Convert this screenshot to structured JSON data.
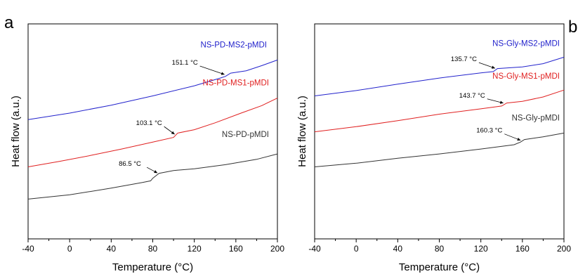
{
  "chart_data": [
    {
      "type": "line",
      "panel_label": "a",
      "xlabel": "Temperature (°C)",
      "ylabel": "Heat flow (a.u.)",
      "xlim": [
        -40,
        200
      ],
      "ylim": [
        0,
        1
      ],
      "x_ticks": [
        "-40",
        "0",
        "40",
        "80",
        "120",
        "160",
        "200"
      ],
      "grid": false,
      "series": [
        {
          "name": "NS-PD-MS2-pMDI",
          "color": "#2222cc",
          "points": [
            [
              -40,
              0.555
            ],
            [
              0,
              0.585
            ],
            [
              40,
              0.622
            ],
            [
              80,
              0.665
            ],
            [
              120,
              0.712
            ],
            [
              145,
              0.748
            ],
            [
              150,
              0.756
            ],
            [
              155,
              0.771
            ],
            [
              170,
              0.782
            ],
            [
              185,
              0.806
            ],
            [
              200,
              0.832
            ]
          ],
          "annotation": {
            "text": "151.1 °C",
            "x": 151.1,
            "y": 0.758
          }
        },
        {
          "name": "NS-PD-MS1-pMDI",
          "color": "#e02020",
          "points": [
            [
              -40,
              0.335
            ],
            [
              -10,
              0.36
            ],
            [
              20,
              0.388
            ],
            [
              50,
              0.418
            ],
            [
              80,
              0.45
            ],
            [
              100,
              0.472
            ],
            [
              104,
              0.492
            ],
            [
              120,
              0.508
            ],
            [
              140,
              0.54
            ],
            [
              165,
              0.585
            ],
            [
              185,
              0.62
            ],
            [
              200,
              0.655
            ]
          ],
          "annotation": {
            "text": "103.1 °C",
            "x": 103.1,
            "y": 0.48
          }
        },
        {
          "name": "NS-PD-pMDI",
          "color": "#333333",
          "points": [
            [
              -40,
              0.185
            ],
            [
              0,
              0.205
            ],
            [
              40,
              0.236
            ],
            [
              70,
              0.262
            ],
            [
              78,
              0.27
            ],
            [
              80,
              0.282
            ],
            [
              86,
              0.305
            ],
            [
              100,
              0.318
            ],
            [
              120,
              0.326
            ],
            [
              150,
              0.345
            ],
            [
              180,
              0.37
            ],
            [
              200,
              0.395
            ]
          ],
          "annotation": {
            "text": "86.5 °C",
            "x": 86.5,
            "y": 0.3
          }
        }
      ]
    },
    {
      "type": "line",
      "panel_label": "b",
      "xlabel": "Temperature (°C)",
      "ylabel": "Heat flow (a.u.)",
      "xlim": [
        -40,
        200
      ],
      "ylim": [
        0,
        1
      ],
      "x_ticks": [
        "-40",
        "0",
        "40",
        "80",
        "120",
        "160",
        "200"
      ],
      "grid": false,
      "series": [
        {
          "name": "NS-Gly-MS2-pMDI",
          "color": "#2222cc",
          "points": [
            [
              -40,
              0.665
            ],
            [
              0,
              0.69
            ],
            [
              40,
              0.72
            ],
            [
              80,
              0.748
            ],
            [
              120,
              0.772
            ],
            [
              132,
              0.778
            ],
            [
              136,
              0.792
            ],
            [
              160,
              0.8
            ],
            [
              180,
              0.815
            ],
            [
              200,
              0.845
            ]
          ],
          "annotation": {
            "text": "135.7 °C",
            "x": 135.7,
            "y": 0.787
          }
        },
        {
          "name": "NS-Gly-MS1-pMDI",
          "color": "#e02020",
          "points": [
            [
              -40,
              0.498
            ],
            [
              0,
              0.522
            ],
            [
              40,
              0.55
            ],
            [
              80,
              0.58
            ],
            [
              120,
              0.605
            ],
            [
              140,
              0.618
            ],
            [
              145,
              0.632
            ],
            [
              160,
              0.64
            ],
            [
              180,
              0.66
            ],
            [
              200,
              0.692
            ]
          ],
          "annotation": {
            "text": "143.7 °C",
            "x": 143.7,
            "y": 0.625
          }
        },
        {
          "name": "NS-Gly-pMDI",
          "color": "#333333",
          "points": [
            [
              -40,
              0.335
            ],
            [
              0,
              0.352
            ],
            [
              40,
              0.375
            ],
            [
              80,
              0.395
            ],
            [
              120,
              0.418
            ],
            [
              152,
              0.438
            ],
            [
              158,
              0.45
            ],
            [
              162,
              0.462
            ],
            [
              180,
              0.475
            ],
            [
              200,
              0.492
            ]
          ],
          "annotation": {
            "text": "160.3 °C",
            "x": 160.3,
            "y": 0.452
          }
        }
      ]
    }
  ]
}
